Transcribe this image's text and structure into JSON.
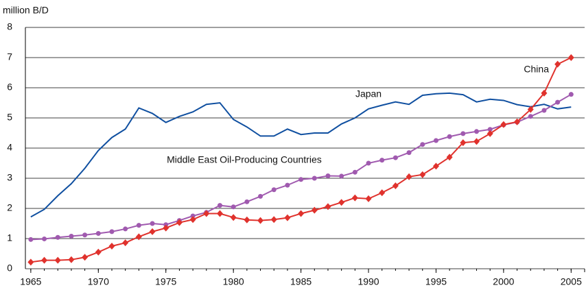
{
  "chart_data": {
    "type": "line",
    "y_axis_label": "million B/D",
    "x": [
      1965,
      1966,
      1967,
      1968,
      1969,
      1970,
      1971,
      1972,
      1973,
      1974,
      1975,
      1976,
      1977,
      1978,
      1979,
      1980,
      1981,
      1982,
      1983,
      1984,
      1985,
      1986,
      1987,
      1988,
      1989,
      1990,
      1991,
      1992,
      1993,
      1994,
      1995,
      1996,
      1997,
      1998,
      1999,
      2000,
      2001,
      2002,
      2003,
      2004,
      2005
    ],
    "series": [
      {
        "name": "Japan",
        "color": "#0f4fa0",
        "marker": "none",
        "values": [
          1.72,
          1.97,
          2.42,
          2.82,
          3.33,
          3.92,
          4.35,
          4.63,
          5.33,
          5.15,
          4.85,
          5.05,
          5.2,
          5.45,
          5.5,
          4.95,
          4.7,
          4.4,
          4.4,
          4.63,
          4.45,
          4.5,
          4.5,
          4.8,
          5.0,
          5.3,
          5.42,
          5.53,
          5.45,
          5.75,
          5.8,
          5.82,
          5.77,
          5.53,
          5.62,
          5.58,
          5.44,
          5.37,
          5.45,
          5.3,
          5.36
        ]
      },
      {
        "name": "Middle East Oil-Producing Countries",
        "color": "#a05aaf",
        "marker": "circle",
        "values": [
          0.97,
          0.99,
          1.04,
          1.08,
          1.12,
          1.17,
          1.23,
          1.32,
          1.44,
          1.5,
          1.46,
          1.6,
          1.75,
          1.87,
          2.1,
          2.05,
          2.22,
          2.4,
          2.62,
          2.77,
          2.96,
          3.0,
          3.08,
          3.07,
          3.2,
          3.5,
          3.6,
          3.68,
          3.85,
          4.12,
          4.25,
          4.38,
          4.48,
          4.55,
          4.62,
          4.77,
          4.86,
          5.05,
          5.25,
          5.52,
          5.78
        ]
      },
      {
        "name": "China",
        "color": "#e0322d",
        "marker": "diamond",
        "values": [
          0.22,
          0.28,
          0.28,
          0.3,
          0.38,
          0.55,
          0.75,
          0.86,
          1.06,
          1.23,
          1.35,
          1.53,
          1.63,
          1.83,
          1.83,
          1.7,
          1.62,
          1.6,
          1.63,
          1.69,
          1.83,
          1.94,
          2.06,
          2.2,
          2.35,
          2.32,
          2.52,
          2.75,
          3.05,
          3.12,
          3.4,
          3.7,
          4.18,
          4.22,
          4.48,
          4.78,
          4.87,
          5.28,
          5.82,
          6.78,
          7.0
        ]
      }
    ],
    "xlim": [
      1964.6,
      2006
    ],
    "xticks": [
      1965,
      1970,
      1975,
      1980,
      1985,
      1990,
      1995,
      2000,
      2005
    ],
    "ylim": [
      0,
      8
    ],
    "yticks": [
      0,
      1,
      2,
      3,
      4,
      5,
      6,
      7,
      8
    ],
    "grid": true
  }
}
